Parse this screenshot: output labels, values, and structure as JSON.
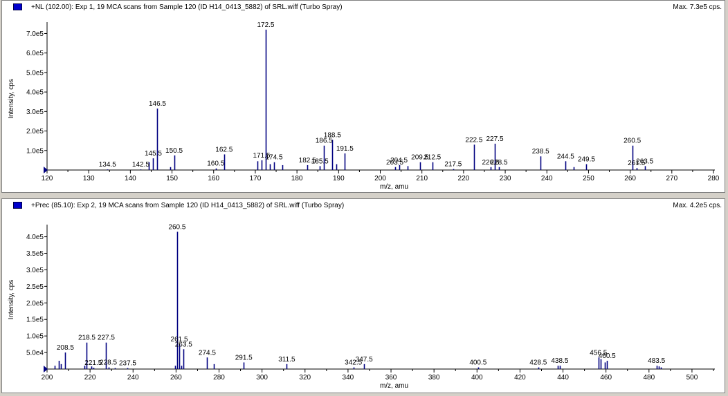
{
  "chart_data": [
    {
      "type": "bar",
      "title": "+NL (102.00): Exp 1, 19 MCA scans from Sample 120 (ID H14_0413_5882) of SRL.wiff (Turbo Spray)",
      "max_label": "Max. 7.3e5 cps.",
      "xlabel": "m/z, amu",
      "ylabel": "Intensity, cps",
      "xlim": [
        120,
        280
      ],
      "ylim": [
        0,
        730000
      ],
      "xticks": [
        120,
        130,
        140,
        150,
        160,
        170,
        180,
        190,
        200,
        210,
        220,
        230,
        240,
        250,
        260,
        270,
        280
      ],
      "yticks": [
        {
          "v": 100000,
          "label": "1.0e5"
        },
        {
          "v": 200000,
          "label": "2.0e5"
        },
        {
          "v": 300000,
          "label": "3.0e5"
        },
        {
          "v": 400000,
          "label": "4.0e5"
        },
        {
          "v": 500000,
          "label": "5.0e5"
        },
        {
          "v": 600000,
          "label": "6.0e5"
        },
        {
          "v": 700000,
          "label": "7.0e5"
        }
      ],
      "peaks": [
        {
          "x": 134.5,
          "y": 3000
        },
        {
          "x": 142.5,
          "y": 3000
        },
        {
          "x": 144.5,
          "y": 40000
        },
        {
          "x": 145.5,
          "y": 60000
        },
        {
          "x": 146.5,
          "y": 315000
        },
        {
          "x": 149.5,
          "y": 15000
        },
        {
          "x": 150.5,
          "y": 75000
        },
        {
          "x": 160.5,
          "y": 8000
        },
        {
          "x": 162.5,
          "y": 80000
        },
        {
          "x": 170.5,
          "y": 45000
        },
        {
          "x": 171.5,
          "y": 50000
        },
        {
          "x": 172.5,
          "y": 720000
        },
        {
          "x": 173.5,
          "y": 30000
        },
        {
          "x": 174.5,
          "y": 40000
        },
        {
          "x": 176.5,
          "y": 25000
        },
        {
          "x": 182.5,
          "y": 25000
        },
        {
          "x": 185.5,
          "y": 20000
        },
        {
          "x": 186.5,
          "y": 125000
        },
        {
          "x": 188.5,
          "y": 155000
        },
        {
          "x": 189.5,
          "y": 30000
        },
        {
          "x": 191.5,
          "y": 85000
        },
        {
          "x": 203.5,
          "y": 15000
        },
        {
          "x": 204.5,
          "y": 25000
        },
        {
          "x": 206.5,
          "y": 20000
        },
        {
          "x": 209.5,
          "y": 40000
        },
        {
          "x": 212.5,
          "y": 40000
        },
        {
          "x": 217.5,
          "y": 5000
        },
        {
          "x": 222.5,
          "y": 130000
        },
        {
          "x": 226.5,
          "y": 15000
        },
        {
          "x": 227.5,
          "y": 135000
        },
        {
          "x": 228.5,
          "y": 15000
        },
        {
          "x": 238.5,
          "y": 70000
        },
        {
          "x": 244.5,
          "y": 45000
        },
        {
          "x": 246.5,
          "y": 15000
        },
        {
          "x": 249.5,
          "y": 30000
        },
        {
          "x": 260.5,
          "y": 125000
        },
        {
          "x": 261.5,
          "y": 10000
        },
        {
          "x": 263.5,
          "y": 20000
        }
      ],
      "annotations": [
        {
          "x": 134.5,
          "y": 3000,
          "label": "134.5"
        },
        {
          "x": 142.5,
          "y": 3000,
          "label": "142.5"
        },
        {
          "x": 145.5,
          "y": 60000,
          "label": "145.5"
        },
        {
          "x": 146.5,
          "y": 315000,
          "label": "146.5"
        },
        {
          "x": 150.5,
          "y": 75000,
          "label": "150.5"
        },
        {
          "x": 160.5,
          "y": 8000,
          "label": "160.5"
        },
        {
          "x": 162.5,
          "y": 80000,
          "label": "162.5"
        },
        {
          "x": 171.5,
          "y": 50000,
          "label": "171.5"
        },
        {
          "x": 172.5,
          "y": 720000,
          "label": "172.5"
        },
        {
          "x": 174.5,
          "y": 40000,
          "label": "174.5"
        },
        {
          "x": 182.5,
          "y": 25000,
          "label": "182.5"
        },
        {
          "x": 185.5,
          "y": 20000,
          "label": "185.5"
        },
        {
          "x": 186.5,
          "y": 125000,
          "label": "186.5"
        },
        {
          "x": 188.5,
          "y": 155000,
          "label": "188.5"
        },
        {
          "x": 191.5,
          "y": 85000,
          "label": "191.5"
        },
        {
          "x": 203.5,
          "y": 15000,
          "label": "203.5"
        },
        {
          "x": 204.5,
          "y": 25000,
          "label": "204.5"
        },
        {
          "x": 209.5,
          "y": 40000,
          "label": "209.5"
        },
        {
          "x": 212.5,
          "y": 40000,
          "label": "212.5"
        },
        {
          "x": 217.5,
          "y": 5000,
          "label": "217.5"
        },
        {
          "x": 222.5,
          "y": 130000,
          "label": "222.5"
        },
        {
          "x": 226.5,
          "y": 15000,
          "label": "226.5"
        },
        {
          "x": 227.5,
          "y": 135000,
          "label": "227.5"
        },
        {
          "x": 228.5,
          "y": 15000,
          "label": "228.5"
        },
        {
          "x": 238.5,
          "y": 70000,
          "label": "238.5"
        },
        {
          "x": 244.5,
          "y": 45000,
          "label": "244.5"
        },
        {
          "x": 249.5,
          "y": 30000,
          "label": "249.5"
        },
        {
          "x": 260.5,
          "y": 125000,
          "label": "260.5"
        },
        {
          "x": 261.5,
          "y": 10000,
          "label": "261.5"
        },
        {
          "x": 263.5,
          "y": 20000,
          "label": "263.5"
        }
      ]
    },
    {
      "type": "bar",
      "title": "+Prec (85.10): Exp 2, 19 MCA scans from Sample 120 (ID H14_0413_5882) of SRL.wiff (Turbo Spray)",
      "max_label": "Max. 4.2e5 cps.",
      "xlabel": "m/z, amu",
      "ylabel": "Intensity, cps",
      "xlim": [
        200,
        510
      ],
      "ylim": [
        0,
        420000
      ],
      "xticks": [
        200,
        220,
        240,
        260,
        280,
        300,
        320,
        340,
        360,
        380,
        400,
        420,
        440,
        460,
        480,
        500
      ],
      "yticks": [
        {
          "v": 50000,
          "label": "5.0e4"
        },
        {
          "v": 100000,
          "label": "1.0e5"
        },
        {
          "v": 150000,
          "label": "1.5e5"
        },
        {
          "v": 200000,
          "label": "2.0e5"
        },
        {
          "v": 250000,
          "label": "2.5e5"
        },
        {
          "v": 300000,
          "label": "3.0e5"
        },
        {
          "v": 350000,
          "label": "3.5e5"
        },
        {
          "v": 400000,
          "label": "4.0e5"
        }
      ],
      "peaks": [
        {
          "x": 203.5,
          "y": 10000
        },
        {
          "x": 205.5,
          "y": 25000
        },
        {
          "x": 206.5,
          "y": 15000
        },
        {
          "x": 208.5,
          "y": 50000
        },
        {
          "x": 217.5,
          "y": 10000
        },
        {
          "x": 218.5,
          "y": 80000
        },
        {
          "x": 220.5,
          "y": 8000
        },
        {
          "x": 221.5,
          "y": 4000
        },
        {
          "x": 227.5,
          "y": 80000
        },
        {
          "x": 228.5,
          "y": 5000
        },
        {
          "x": 231.5,
          "y": 3000
        },
        {
          "x": 237.5,
          "y": 3000
        },
        {
          "x": 259.5,
          "y": 10000
        },
        {
          "x": 260.5,
          "y": 415000
        },
        {
          "x": 261.5,
          "y": 75000
        },
        {
          "x": 262.5,
          "y": 10000
        },
        {
          "x": 263.5,
          "y": 60000
        },
        {
          "x": 274.5,
          "y": 35000
        },
        {
          "x": 277.5,
          "y": 15000
        },
        {
          "x": 291.5,
          "y": 20000
        },
        {
          "x": 311.5,
          "y": 15000
        },
        {
          "x": 342.5,
          "y": 5000
        },
        {
          "x": 347.5,
          "y": 15000
        },
        {
          "x": 400.5,
          "y": 5000
        },
        {
          "x": 428.5,
          "y": 5000
        },
        {
          "x": 437.5,
          "y": 10000
        },
        {
          "x": 438.5,
          "y": 10000
        },
        {
          "x": 456.5,
          "y": 35000
        },
        {
          "x": 457.5,
          "y": 30000
        },
        {
          "x": 459.5,
          "y": 20000
        },
        {
          "x": 460.5,
          "y": 25000
        },
        {
          "x": 483.5,
          "y": 10000
        },
        {
          "x": 484.5,
          "y": 8000
        },
        {
          "x": 485.5,
          "y": 5000
        }
      ],
      "annotations": [
        {
          "x": 208.5,
          "y": 50000,
          "label": "208.5"
        },
        {
          "x": 218.5,
          "y": 80000,
          "label": "218.5"
        },
        {
          "x": 221.5,
          "y": 4000,
          "label": "221.5"
        },
        {
          "x": 227.5,
          "y": 80000,
          "label": "227.5"
        },
        {
          "x": 228.5,
          "y": 5000,
          "label": "228.5"
        },
        {
          "x": 237.5,
          "y": 3000,
          "label": "237.5"
        },
        {
          "x": 260.5,
          "y": 415000,
          "label": "260.5"
        },
        {
          "x": 261.5,
          "y": 75000,
          "label": "261.5"
        },
        {
          "x": 263.5,
          "y": 60000,
          "label": "263.5"
        },
        {
          "x": 274.5,
          "y": 35000,
          "label": "274.5"
        },
        {
          "x": 291.5,
          "y": 20000,
          "label": "291.5"
        },
        {
          "x": 311.5,
          "y": 15000,
          "label": "311.5"
        },
        {
          "x": 342.5,
          "y": 5000,
          "label": "342.5"
        },
        {
          "x": 347.5,
          "y": 15000,
          "label": "347.5"
        },
        {
          "x": 400.5,
          "y": 5000,
          "label": "400.5"
        },
        {
          "x": 428.5,
          "y": 5000,
          "label": "428.5"
        },
        {
          "x": 438.5,
          "y": 10000,
          "label": "438.5"
        },
        {
          "x": 456.5,
          "y": 35000,
          "label": "456.5"
        },
        {
          "x": 460.5,
          "y": 25000,
          "label": "460.5"
        },
        {
          "x": 483.5,
          "y": 10000,
          "label": "483.5"
        }
      ]
    }
  ],
  "colors": {
    "peak": "#000080",
    "legend_swatch": "#0000cc",
    "axis": "#000000",
    "marker": "#000080"
  }
}
